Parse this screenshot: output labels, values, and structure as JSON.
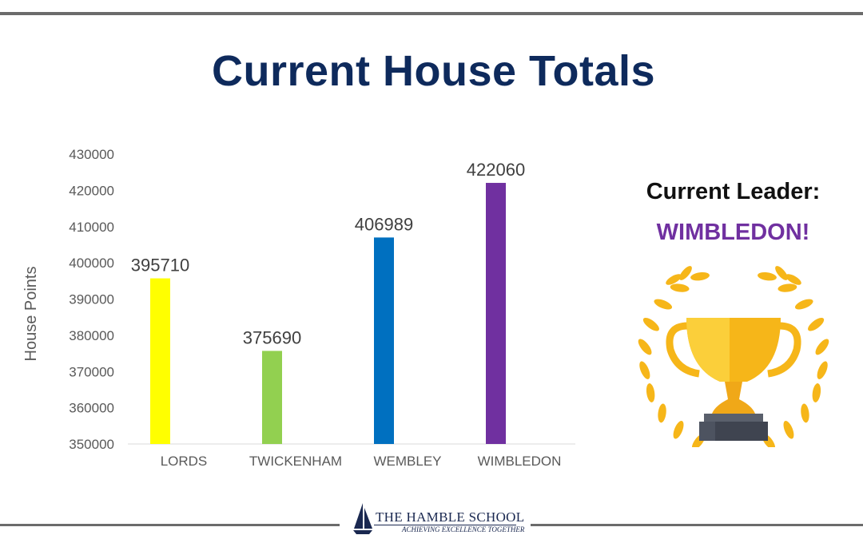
{
  "page": {
    "title": "Current House Totals",
    "leader_title": "Current Leader:",
    "leader_name": "WIMBLEDON!"
  },
  "logo": {
    "name": "The Hamble School",
    "tagline": "Achieving Excellence Together"
  },
  "icons": [
    "trophy-icon",
    "laurel-wreath-icon",
    "sailboat-logo-icon"
  ],
  "colors": {
    "title": "#0e2a5c",
    "leader_name": "#7030a0",
    "trophy_gold": "#f6b619",
    "trophy_base": "#3f4450"
  },
  "chart_data": {
    "type": "bar",
    "title": "",
    "xlabel": "",
    "ylabel": "House Points",
    "ylim": [
      350000,
      430000
    ],
    "yticks": [
      350000,
      360000,
      370000,
      380000,
      390000,
      400000,
      410000,
      420000,
      430000
    ],
    "grid": false,
    "categories": [
      "LORDS",
      "TWICKENHAM",
      "WEMBLEY",
      "WIMBLEDON"
    ],
    "values": [
      395710,
      375690,
      406989,
      422060
    ],
    "bar_colors": [
      "#ffff00",
      "#92d050",
      "#0070c0",
      "#7030a0"
    ],
    "data_labels": true
  }
}
